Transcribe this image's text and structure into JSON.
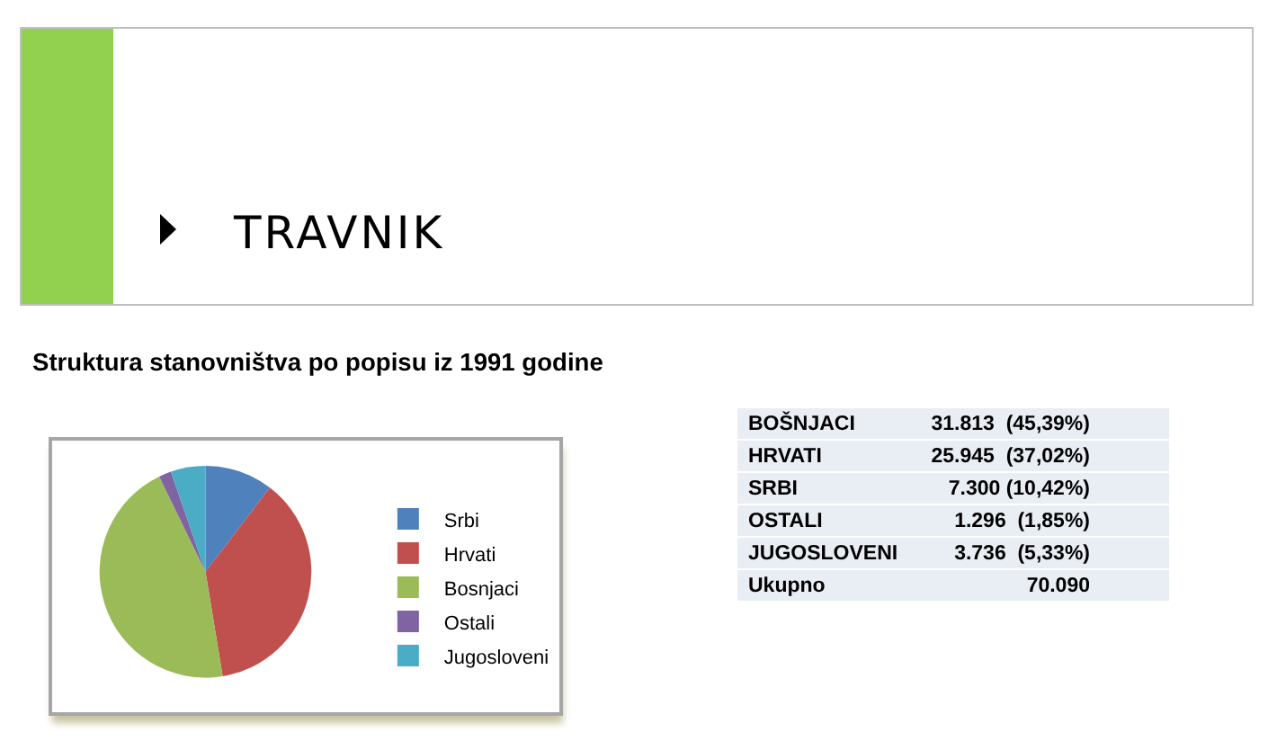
{
  "chart_data": [
    {
      "type": "pie",
      "title": "TRAVNIK",
      "subtitle": "Struktura stanovništva po popisu iz 1991 godine",
      "categories": [
        "Srbi",
        "Hrvati",
        "Bosnjaci",
        "Ostali",
        "Jugosloveni"
      ],
      "values": [
        10.4,
        37.0,
        45.4,
        1.9,
        5.3
      ],
      "colors": [
        "#4f81bd",
        "#c0504d",
        "#9bbb59",
        "#8064a2",
        "#4bacc6"
      ],
      "legend": "right"
    },
    {
      "type": "other",
      "categories": [
        "BOŠNJACI",
        "HRVATI",
        "SRBI",
        "OSTALI",
        "JUGOSLOVENI",
        "Ukupno"
      ],
      "value_labels": [
        "31.813  (45,39%)",
        "25.945  (37,02%)",
        "7.300 (10,42%)",
        "1.296  (1,85%)",
        "3.736  (5,33%)",
        "70.090"
      ]
    }
  ]
}
